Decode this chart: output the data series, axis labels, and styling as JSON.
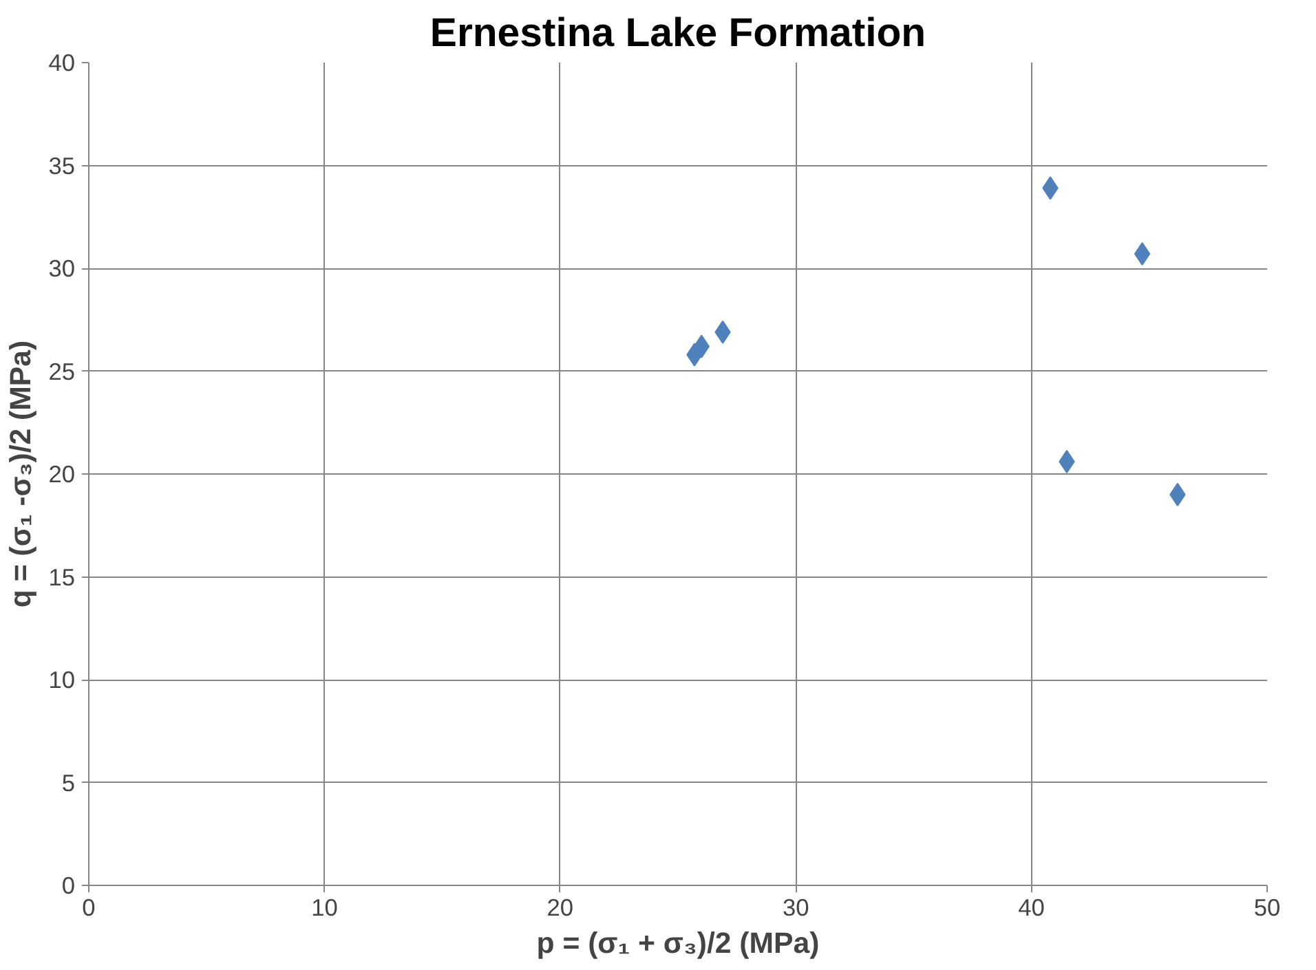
{
  "chart_data": {
    "type": "scatter",
    "title": "Ernestina Lake Formation",
    "xlabel": "p = (σ₁ + σ₃)/2 (MPa)",
    "ylabel": "q = (σ₁ -σ₃)/2 (MPa)",
    "series": [
      {
        "color": "#4f81bd",
        "x": [
          25.7,
          26.0,
          26.9,
          40.8,
          44.7,
          41.5,
          46.2
        ],
        "values": [
          25.8,
          26.2,
          26.9,
          33.9,
          30.7,
          20.6,
          19.0
        ]
      }
    ],
    "xlim": [
      0,
      50
    ],
    "xticks": [
      0,
      10,
      20,
      30,
      40,
      50
    ],
    "ylim": [
      0,
      40
    ],
    "yticks": [
      0,
      5,
      10,
      15,
      20,
      25,
      30,
      35,
      40
    ],
    "grid": true,
    "marker": "diamond"
  }
}
